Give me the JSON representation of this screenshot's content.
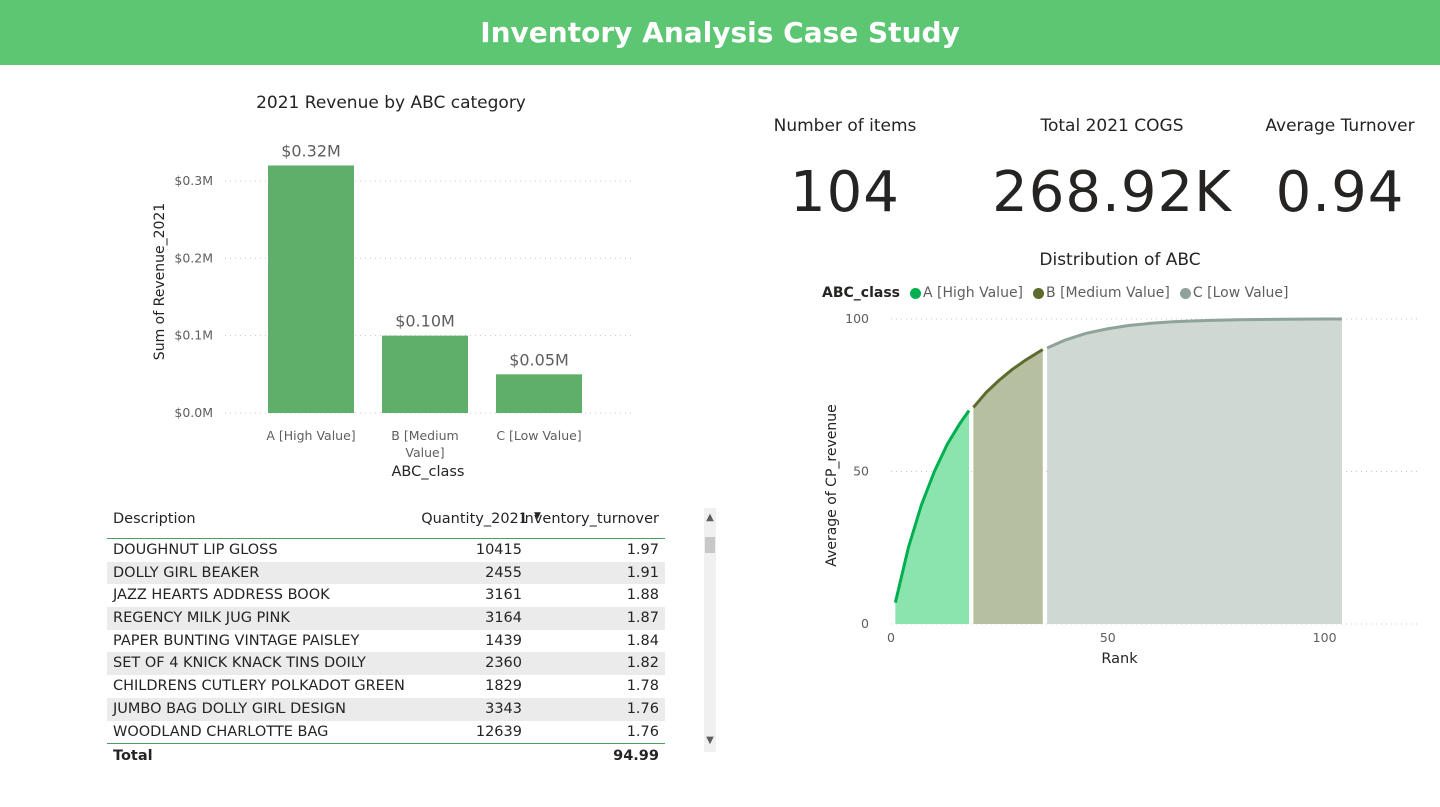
{
  "header": {
    "title": "Inventory Analysis Case Study"
  },
  "kpis": [
    {
      "label": "Number of items",
      "value": "104"
    },
    {
      "label": "Total 2021 COGS",
      "value": "268.92K"
    },
    {
      "label": "Average Turnover",
      "value": "0.94"
    }
  ],
  "chart_data": [
    {
      "type": "bar",
      "title": "2021 Revenue by ABC category",
      "xlabel": "ABC_class",
      "ylabel": "Sum of Revenue_2021",
      "categories": [
        "A [High Value]",
        "B [Medium Value]",
        "C [Low Value]"
      ],
      "values": [
        0.32,
        0.1,
        0.05
      ],
      "data_labels": [
        "$0.32M",
        "$0.10M",
        "$0.05M"
      ],
      "yticks": [
        "$0.0M",
        "$0.1M",
        "$0.2M",
        "$0.3M"
      ],
      "ytick_values": [
        0,
        0.1,
        0.2,
        0.3
      ],
      "ylim": [
        0,
        0.34
      ],
      "color": "#5fae6a"
    },
    {
      "type": "area",
      "title": "Distribution of ABC",
      "legend_title": "ABC_class",
      "xlabel": "Rank",
      "ylabel": "Average of CP_revenue",
      "xlim": [
        0,
        122
      ],
      "ylim": [
        0,
        100
      ],
      "xticks": [
        0,
        50,
        100
      ],
      "yticks": [
        0,
        50,
        100
      ],
      "series": [
        {
          "name": "A [High Value]",
          "line_color": "#00b050",
          "fill_color": "#8be3ad",
          "x": [
            1,
            4,
            7,
            10,
            13,
            16,
            18
          ],
          "y": [
            7,
            25,
            39,
            50,
            59,
            66,
            70
          ]
        },
        {
          "name": "B [Medium Value]",
          "line_color": "#5c6b2e",
          "fill_color": "#b6bf9f",
          "x": [
            19,
            22,
            25,
            28,
            31,
            35
          ],
          "y": [
            71,
            76,
            80,
            83.5,
            86.5,
            90
          ]
        },
        {
          "name": "C [Low Value]",
          "line_color": "#8fa39a",
          "fill_color": "#cfd8d3",
          "x": [
            36,
            40,
            45,
            50,
            55,
            60,
            65,
            70,
            75,
            80,
            85,
            90,
            95,
            100,
            104
          ],
          "y": [
            90.5,
            93,
            95.3,
            96.8,
            97.9,
            98.6,
            99.1,
            99.4,
            99.6,
            99.75,
            99.85,
            99.92,
            99.96,
            99.99,
            100
          ]
        }
      ]
    }
  ],
  "table": {
    "columns": [
      "Description",
      "Quantity_2021",
      "Inventory_turnover"
    ],
    "rows": [
      {
        "description": "DOUGHNUT LIP GLOSS",
        "quantity": "10415",
        "turnover": "1.97"
      },
      {
        "description": "DOLLY GIRL BEAKER",
        "quantity": "2455",
        "turnover": "1.91"
      },
      {
        "description": "JAZZ HEARTS ADDRESS BOOK",
        "quantity": "3161",
        "turnover": "1.88"
      },
      {
        "description": "REGENCY MILK JUG PINK",
        "quantity": "3164",
        "turnover": "1.87"
      },
      {
        "description": "PAPER BUNTING VINTAGE PAISLEY",
        "quantity": "1439",
        "turnover": "1.84"
      },
      {
        "description": "SET OF 4 KNICK KNACK TINS DOILY",
        "quantity": "2360",
        "turnover": "1.82"
      },
      {
        "description": "CHILDRENS CUTLERY POLKADOT GREEN",
        "quantity": "1829",
        "turnover": "1.78"
      },
      {
        "description": "JUMBO BAG DOLLY GIRL DESIGN",
        "quantity": "3343",
        "turnover": "1.76"
      },
      {
        "description": "WOODLAND CHARLOTTE BAG",
        "quantity": "12639",
        "turnover": "1.76"
      }
    ],
    "total_label": "Total",
    "total_value": "94.99"
  },
  "scrollbar": {
    "up_icon": "▲",
    "down_icon": "▼"
  },
  "sort_icon": "▼"
}
